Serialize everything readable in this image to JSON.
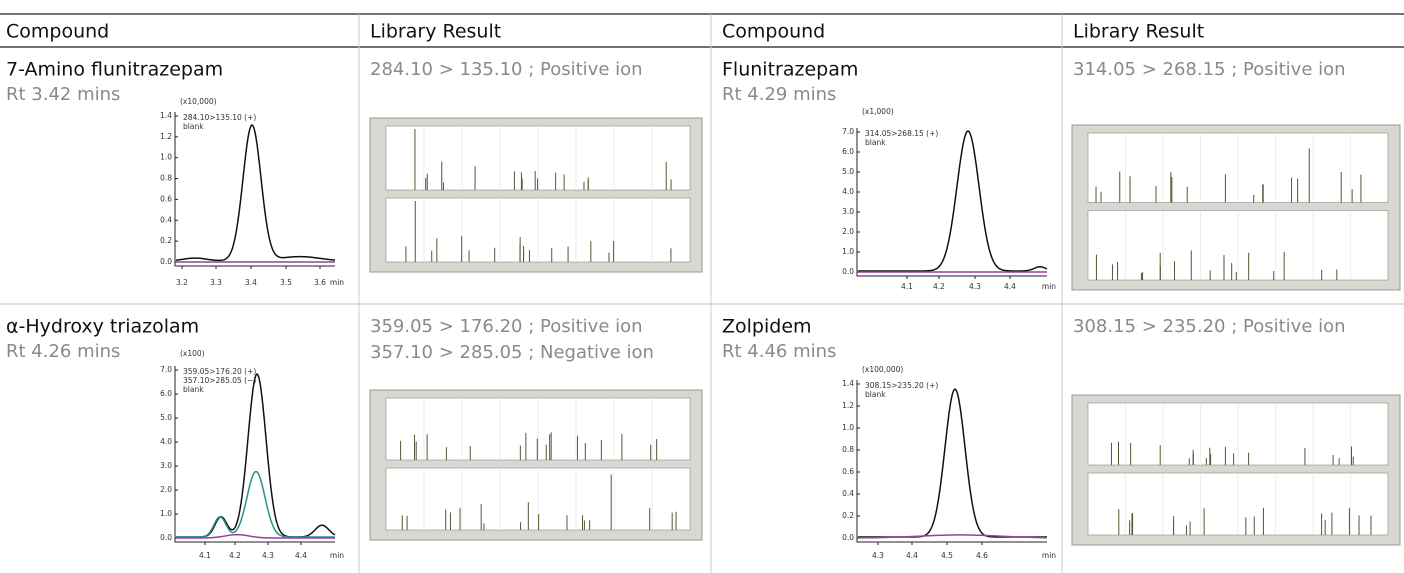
{
  "table": {
    "headers": [
      "Compound",
      "Library Result",
      "Compound",
      "Library Result"
    ],
    "rows": [
      [
        {
          "name": "7-Amino flunitrazepam",
          "rt": "Rt 3.42 mins",
          "chromatogram": {
            "scale": "(x10,000)",
            "traces": [
              {
                "label": "284.10>135.10 (+)",
                "color": "#111111"
              },
              {
                "label": "blank",
                "color": "#9b3fa0"
              }
            ],
            "yticks": [
              "1.4",
              "1.2",
              "1.0",
              "0.8",
              "0.6",
              "0.4",
              "0.2",
              "0.0"
            ],
            "xticks": [
              "3.2",
              "3.3",
              "3.4",
              "3.5",
              "3.6"
            ],
            "xunit": "min"
          }
        },
        {
          "transitions": [
            "284.10 > 135.10 ; Positive ion"
          ]
        },
        {
          "name": "Flunitrazepam",
          "rt": "Rt 4.29 mins",
          "chromatogram": {
            "scale": "(x1,000)",
            "traces": [
              {
                "label": "314.05>268.15 (+)",
                "color": "#111111"
              },
              {
                "label": "blank",
                "color": "#9b3fa0"
              }
            ],
            "yticks": [
              "7.0",
              "6.0",
              "5.0",
              "4.0",
              "3.0",
              "2.0",
              "1.0",
              "0.0"
            ],
            "xticks": [
              "4.1",
              "4.2",
              "4.3",
              "4.4"
            ],
            "xunit": "min"
          }
        },
        {
          "transitions": [
            "314.05 > 268.15 ; Positive ion"
          ]
        }
      ],
      [
        {
          "name": "α-Hydroxy triazolam",
          "rt": "Rt 4.26 mins",
          "chromatogram": {
            "scale": "(x100)",
            "traces": [
              {
                "label": "359.05>176.20 (+)",
                "color": "#111111"
              },
              {
                "label": "357.10>285.05 (−)",
                "color": "#2b8f8c"
              },
              {
                "label": "blank",
                "color": "#9b3fa0"
              }
            ],
            "yticks": [
              "7.0",
              "6.0",
              "5.0",
              "4.0",
              "3.0",
              "2.0",
              "1.0",
              "0.0"
            ],
            "xticks": [
              "4.1",
              "4.2",
              "4.3",
              "4.4"
            ],
            "xunit": "min"
          }
        },
        {
          "transitions": [
            "359.05 > 176.20 ; Positive ion",
            "357.10 > 285.05 ; Negative ion"
          ]
        },
        {
          "name": "Zolpidem",
          "rt": "Rt 4.46 mins",
          "chromatogram": {
            "scale": "(x100,000)",
            "traces": [
              {
                "label": "308.15>235.20 (+)",
                "color": "#111111"
              },
              {
                "label": "blank",
                "color": "#9b3fa0"
              }
            ],
            "yticks": [
              "1.4",
              "1.2",
              "1.0",
              "0.8",
              "0.6",
              "0.4",
              "0.2",
              "0.0"
            ],
            "xticks": [
              "4.3",
              "4.4",
              "4.5",
              "4.6"
            ],
            "xunit": "min"
          }
        },
        {
          "transitions": [
            "308.15 > 235.20 ; Positive ion"
          ]
        }
      ]
    ]
  }
}
